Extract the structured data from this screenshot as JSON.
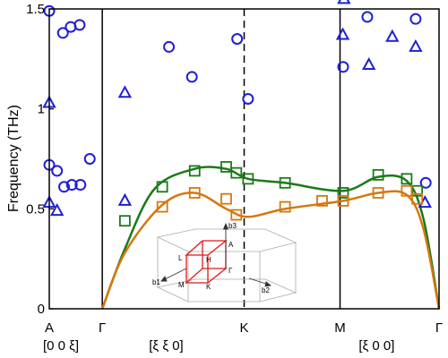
{
  "chart_data": {
    "type": "scatter",
    "ylabel": "Frequency (THz)",
    "ylim": [
      0,
      1.5
    ],
    "xlim": [
      0,
      1
    ],
    "y_ticks": [
      {
        "value": 0,
        "label": "0"
      },
      {
        "value": 0.5,
        "label": "0.5"
      },
      {
        "value": 1,
        "label": "1"
      },
      {
        "value": 1.5,
        "label": "1.5"
      }
    ],
    "x_ticks": [
      {
        "value": 0,
        "label": "A"
      },
      {
        "value": 0.136,
        "label": "Γ"
      },
      {
        "value": 0.5,
        "label": "K"
      },
      {
        "value": 0.746,
        "label": "M"
      },
      {
        "value": 1,
        "label": "Γ"
      }
    ],
    "direction_labels": [
      {
        "x": 0.03,
        "label": "[0 0 ξ]"
      },
      {
        "x": 0.3,
        "label": "[ξ ξ 0]"
      },
      {
        "x": 0.84,
        "label": "[ξ 0 0]"
      }
    ],
    "vertical_lines": [
      {
        "x": 0.136,
        "style": "solid"
      },
      {
        "x": 0.5,
        "style": "dashed"
      },
      {
        "x": 0.746,
        "style": "solid"
      }
    ],
    "colors": {
      "blue": "#1f1fd6",
      "green": "#1a7a1a",
      "orange": "#d4780e"
    },
    "series": [
      {
        "marker": "circle",
        "color": "#1f1fd6",
        "points": [
          [
            0.0,
            1.49
          ],
          [
            0.035,
            1.38
          ],
          [
            0.055,
            1.41
          ],
          [
            0.078,
            1.42
          ],
          [
            0.0,
            0.72
          ],
          [
            0.02,
            0.69
          ],
          [
            0.038,
            0.61
          ],
          [
            0.058,
            0.62
          ],
          [
            0.08,
            0.62
          ],
          [
            0.104,
            0.75
          ],
          [
            0.307,
            1.31
          ],
          [
            0.366,
            1.16
          ],
          [
            0.482,
            1.35
          ],
          [
            0.51,
            1.05
          ],
          [
            0.754,
            1.21
          ],
          [
            0.816,
            1.46
          ],
          [
            0.94,
            1.45
          ],
          [
            0.966,
            0.63
          ]
        ]
      },
      {
        "marker": "triangle",
        "color": "#1f1fd6",
        "points": [
          [
            0.0,
            1.03
          ],
          [
            0.0,
            0.53
          ],
          [
            0.02,
            0.49
          ],
          [
            0.194,
            1.08
          ],
          [
            0.194,
            0.54
          ],
          [
            0.753,
            1.37
          ],
          [
            0.756,
            1.55
          ],
          [
            0.82,
            1.22
          ],
          [
            0.88,
            1.36
          ],
          [
            0.94,
            1.31
          ],
          [
            0.964,
            0.53
          ]
        ]
      },
      {
        "marker": "square",
        "color": "#1a7a1a",
        "points": [
          [
            0.194,
            0.44
          ],
          [
            0.29,
            0.61
          ],
          [
            0.373,
            0.69
          ],
          [
            0.454,
            0.71
          ],
          [
            0.48,
            0.68
          ],
          [
            0.51,
            0.65
          ],
          [
            0.605,
            0.63
          ],
          [
            0.754,
            0.58
          ],
          [
            0.844,
            0.67
          ],
          [
            0.917,
            0.65
          ],
          [
            0.944,
            0.59
          ]
        ]
      },
      {
        "marker": "square",
        "color": "#d4780e",
        "points": [
          [
            0.29,
            0.51
          ],
          [
            0.373,
            0.58
          ],
          [
            0.454,
            0.55
          ],
          [
            0.48,
            0.47
          ],
          [
            0.605,
            0.51
          ],
          [
            0.7,
            0.54
          ],
          [
            0.754,
            0.54
          ],
          [
            0.844,
            0.58
          ],
          [
            0.917,
            0.59
          ],
          [
            0.944,
            0.55
          ]
        ]
      }
    ],
    "curves": [
      {
        "color": "#1a7a1a",
        "points": [
          [
            0.136,
            0.0
          ],
          [
            0.194,
            0.3
          ],
          [
            0.27,
            0.6
          ],
          [
            0.373,
            0.7
          ],
          [
            0.454,
            0.7
          ],
          [
            0.51,
            0.65
          ],
          [
            0.605,
            0.63
          ],
          [
            0.754,
            0.59
          ],
          [
            0.844,
            0.66
          ],
          [
            0.917,
            0.64
          ],
          [
            0.96,
            0.45
          ],
          [
            1.0,
            0.0
          ]
        ]
      },
      {
        "color": "#d4780e",
        "points": [
          [
            0.136,
            0.0
          ],
          [
            0.194,
            0.28
          ],
          [
            0.29,
            0.52
          ],
          [
            0.373,
            0.58
          ],
          [
            0.454,
            0.5
          ],
          [
            0.51,
            0.46
          ],
          [
            0.605,
            0.5
          ],
          [
            0.754,
            0.54
          ],
          [
            0.844,
            0.58
          ],
          [
            0.917,
            0.57
          ],
          [
            0.96,
            0.4
          ],
          [
            1.0,
            0.0
          ]
        ]
      }
    ],
    "inset_labels": {
      "b3": "b3",
      "b1": "b1",
      "b2": "b2",
      "A": "A",
      "L": "L",
      "H": "H",
      "M": "M",
      "K": "K",
      "Gamma": "Γ"
    }
  }
}
